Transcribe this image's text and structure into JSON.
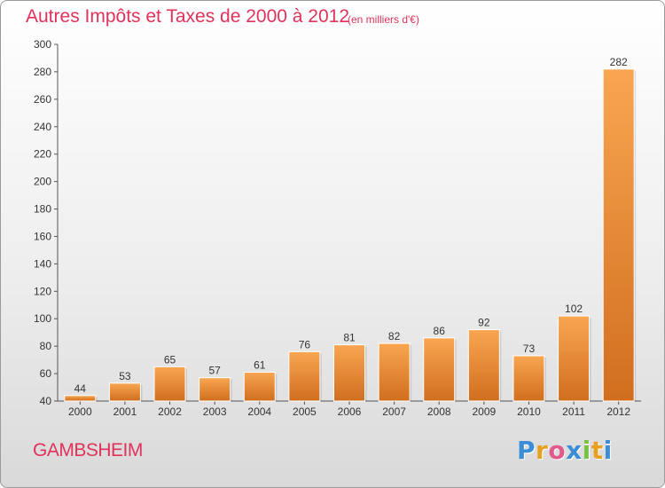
{
  "chart_data": {
    "type": "bar",
    "title": "Autres Impôts et Taxes de 2000 à 2012",
    "unit": "(en milliers d'€)",
    "categories": [
      "2000",
      "2001",
      "2002",
      "2003",
      "2004",
      "2005",
      "2006",
      "2007",
      "2008",
      "2009",
      "2010",
      "2011",
      "2012"
    ],
    "values": [
      44,
      53,
      65,
      57,
      61,
      76,
      81,
      82,
      86,
      92,
      73,
      102,
      282
    ],
    "ylim": [
      40,
      300
    ],
    "yticks": [
      40,
      60,
      80,
      100,
      120,
      140,
      160,
      180,
      200,
      220,
      240,
      260,
      280,
      300
    ],
    "xlabel": "",
    "ylabel": "",
    "grid": false,
    "colors": {
      "bar_light": "#f7a04e",
      "bar_dark": "#d0701f",
      "axis": "#555555"
    }
  },
  "commune": "GAMBSHEIM",
  "logo": {
    "letters": [
      "P",
      "r",
      "o",
      "x",
      "i",
      "t",
      "i"
    ],
    "colors": [
      "#3b8ed6",
      "#e8a020",
      "#e05a8c",
      "#3b8ed6",
      "#7ac043",
      "#e8a020",
      "#3b8ed6"
    ]
  }
}
